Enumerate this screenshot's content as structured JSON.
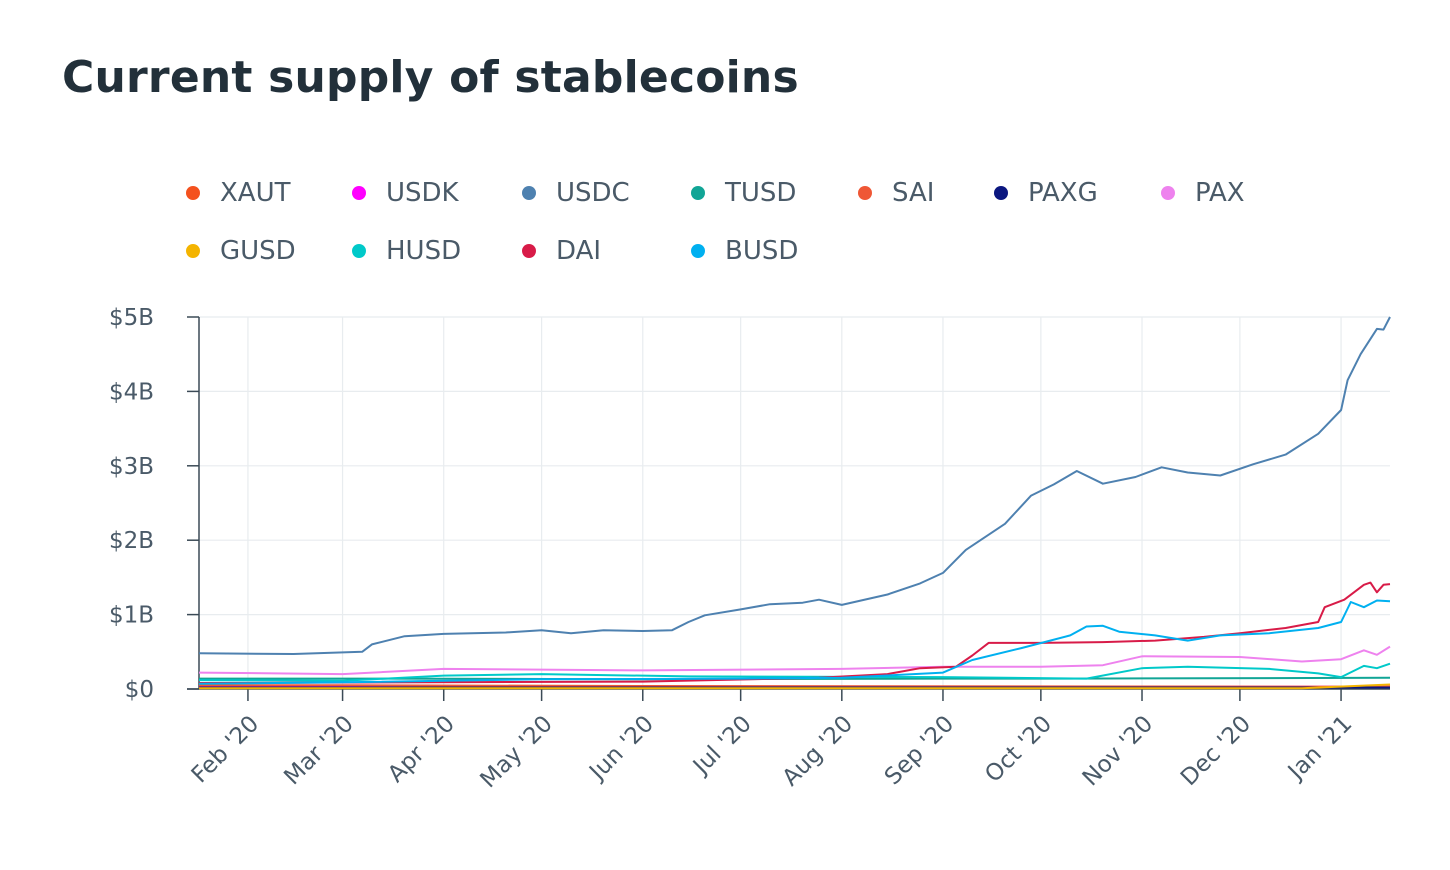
{
  "title": "Current supply of stablecoins",
  "chart_data": {
    "type": "line",
    "title": "Current supply of stablecoins",
    "xlabel": "",
    "ylabel": "",
    "x_ticks": [
      "Feb '20",
      "Mar '20",
      "Apr '20",
      "May '20",
      "Jun '20",
      "Jul '20",
      "Aug '20",
      "Sep '20",
      "Oct '20",
      "Nov '20",
      "Dec '20",
      "Jan '21"
    ],
    "y_ticks": [
      "$0",
      "$1B",
      "$2B",
      "$3B",
      "$4B",
      "$5B"
    ],
    "ylim": [
      0,
      5
    ],
    "y_unit": "billions USD",
    "xlim": [
      "2020-01-17",
      "2021-01-16"
    ],
    "grid": true,
    "legend_position": "top",
    "series": [
      {
        "name": "XAUT",
        "color": "#f4511e",
        "points": [
          [
            "2020-01-17",
            0.02
          ],
          [
            "2020-12-15",
            0.02
          ],
          [
            "2021-01-16",
            0.03
          ]
        ]
      },
      {
        "name": "USDK",
        "color": "#ff00ff",
        "points": [
          [
            "2020-01-17",
            0.03
          ],
          [
            "2021-01-16",
            0.03
          ]
        ]
      },
      {
        "name": "USDC",
        "color": "#4e81b0",
        "points": [
          [
            "2020-01-17",
            0.48
          ],
          [
            "2020-02-15",
            0.47
          ],
          [
            "2020-02-29",
            0.49
          ],
          [
            "2020-03-07",
            0.5
          ],
          [
            "2020-03-10",
            0.6
          ],
          [
            "2020-03-20",
            0.71
          ],
          [
            "2020-04-01",
            0.74
          ],
          [
            "2020-04-20",
            0.76
          ],
          [
            "2020-05-01",
            0.79
          ],
          [
            "2020-05-10",
            0.75
          ],
          [
            "2020-05-20",
            0.79
          ],
          [
            "2020-06-01",
            0.78
          ],
          [
            "2020-06-10",
            0.79
          ],
          [
            "2020-06-15",
            0.9
          ],
          [
            "2020-06-20",
            0.99
          ],
          [
            "2020-07-01",
            1.07
          ],
          [
            "2020-07-10",
            1.14
          ],
          [
            "2020-07-20",
            1.16
          ],
          [
            "2020-07-25",
            1.2
          ],
          [
            "2020-08-01",
            1.13
          ],
          [
            "2020-08-15",
            1.27
          ],
          [
            "2020-08-25",
            1.42
          ],
          [
            "2020-09-01",
            1.56
          ],
          [
            "2020-09-08",
            1.87
          ],
          [
            "2020-09-20",
            2.22
          ],
          [
            "2020-09-28",
            2.6
          ],
          [
            "2020-10-05",
            2.75
          ],
          [
            "2020-10-12",
            2.93
          ],
          [
            "2020-10-20",
            2.76
          ],
          [
            "2020-10-30",
            2.85
          ],
          [
            "2020-11-07",
            2.98
          ],
          [
            "2020-11-15",
            2.91
          ],
          [
            "2020-11-25",
            2.87
          ],
          [
            "2020-12-05",
            3.02
          ],
          [
            "2020-12-15",
            3.15
          ],
          [
            "2020-12-25",
            3.43
          ],
          [
            "2021-01-01",
            3.75
          ],
          [
            "2021-01-03",
            4.15
          ],
          [
            "2021-01-07",
            4.5
          ],
          [
            "2021-01-12",
            4.84
          ],
          [
            "2021-01-14",
            4.83
          ],
          [
            "2021-01-16",
            5.0
          ]
        ]
      },
      {
        "name": "TUSD",
        "color": "#11a596",
        "points": [
          [
            "2020-01-17",
            0.14
          ],
          [
            "2020-03-15",
            0.14
          ],
          [
            "2020-06-01",
            0.13
          ],
          [
            "2020-09-01",
            0.14
          ],
          [
            "2020-10-10",
            0.14
          ],
          [
            "2021-01-16",
            0.15
          ]
        ]
      },
      {
        "name": "SAI",
        "color": "#ef5735",
        "points": [
          [
            "2020-01-17",
            0.05
          ],
          [
            "2020-03-01",
            0.05
          ],
          [
            "2020-06-01",
            0.04
          ],
          [
            "2021-01-16",
            0.03
          ]
        ]
      },
      {
        "name": "PAXG",
        "color": "#0b1780",
        "points": [
          [
            "2020-01-17",
            0.02
          ],
          [
            "2021-01-16",
            0.02
          ]
        ]
      },
      {
        "name": "PAX",
        "color": "#ee82ee",
        "points": [
          [
            "2020-01-17",
            0.22
          ],
          [
            "2020-03-01",
            0.2
          ],
          [
            "2020-04-01",
            0.27
          ],
          [
            "2020-06-01",
            0.25
          ],
          [
            "2020-08-01",
            0.27
          ],
          [
            "2020-09-01",
            0.3
          ],
          [
            "2020-10-01",
            0.3
          ],
          [
            "2020-10-20",
            0.32
          ],
          [
            "2020-11-01",
            0.44
          ],
          [
            "2020-12-01",
            0.43
          ],
          [
            "2020-12-20",
            0.37
          ],
          [
            "2021-01-01",
            0.4
          ],
          [
            "2021-01-08",
            0.52
          ],
          [
            "2021-01-12",
            0.46
          ],
          [
            "2021-01-16",
            0.57
          ]
        ]
      },
      {
        "name": "GUSD",
        "color": "#f4b400",
        "points": [
          [
            "2020-01-17",
            0.01
          ],
          [
            "2020-12-20",
            0.01
          ],
          [
            "2021-01-16",
            0.06
          ]
        ]
      },
      {
        "name": "HUSD",
        "color": "#00c9c9",
        "points": [
          [
            "2020-01-17",
            0.12
          ],
          [
            "2020-03-01",
            0.11
          ],
          [
            "2020-04-01",
            0.18
          ],
          [
            "2020-05-01",
            0.2
          ],
          [
            "2020-06-15",
            0.17
          ],
          [
            "2020-09-01",
            0.16
          ],
          [
            "2020-10-15",
            0.14
          ],
          [
            "2020-11-01",
            0.28
          ],
          [
            "2020-11-15",
            0.3
          ],
          [
            "2020-12-10",
            0.27
          ],
          [
            "2020-12-25",
            0.21
          ],
          [
            "2021-01-01",
            0.16
          ],
          [
            "2021-01-08",
            0.31
          ],
          [
            "2021-01-12",
            0.28
          ],
          [
            "2021-01-16",
            0.34
          ]
        ]
      },
      {
        "name": "DAI",
        "color": "#d81b48",
        "points": [
          [
            "2020-01-17",
            0.08
          ],
          [
            "2020-06-01",
            0.1
          ],
          [
            "2020-07-25",
            0.15
          ],
          [
            "2020-08-15",
            0.2
          ],
          [
            "2020-08-25",
            0.28
          ],
          [
            "2020-09-05",
            0.3
          ],
          [
            "2020-09-10",
            0.45
          ],
          [
            "2020-09-15",
            0.62
          ],
          [
            "2020-10-01",
            0.62
          ],
          [
            "2020-10-20",
            0.63
          ],
          [
            "2020-11-05",
            0.65
          ],
          [
            "2020-11-20",
            0.7
          ],
          [
            "2020-12-01",
            0.75
          ],
          [
            "2020-12-15",
            0.82
          ],
          [
            "2020-12-25",
            0.9
          ],
          [
            "2020-12-27",
            1.1
          ],
          [
            "2021-01-02",
            1.2
          ],
          [
            "2021-01-08",
            1.4
          ],
          [
            "2021-01-10",
            1.43
          ],
          [
            "2021-01-12",
            1.3
          ],
          [
            "2021-01-14",
            1.4
          ],
          [
            "2021-01-16",
            1.41
          ]
        ]
      },
      {
        "name": "BUSD",
        "color": "#00b0f0",
        "points": [
          [
            "2020-01-17",
            0.07
          ],
          [
            "2020-03-01",
            0.09
          ],
          [
            "2020-05-01",
            0.13
          ],
          [
            "2020-07-01",
            0.14
          ],
          [
            "2020-08-01",
            0.15
          ],
          [
            "2020-09-01",
            0.22
          ],
          [
            "2020-09-10",
            0.39
          ],
          [
            "2020-09-25",
            0.55
          ],
          [
            "2020-10-10",
            0.72
          ],
          [
            "2020-10-15",
            0.84
          ],
          [
            "2020-10-20",
            0.85
          ],
          [
            "2020-10-25",
            0.77
          ],
          [
            "2020-11-05",
            0.72
          ],
          [
            "2020-11-15",
            0.65
          ],
          [
            "2020-11-25",
            0.72
          ],
          [
            "2020-12-10",
            0.75
          ],
          [
            "2020-12-25",
            0.82
          ],
          [
            "2021-01-01",
            0.9
          ],
          [
            "2021-01-04",
            1.17
          ],
          [
            "2021-01-08",
            1.1
          ],
          [
            "2021-01-12",
            1.19
          ],
          [
            "2021-01-16",
            1.18
          ]
        ]
      }
    ]
  }
}
